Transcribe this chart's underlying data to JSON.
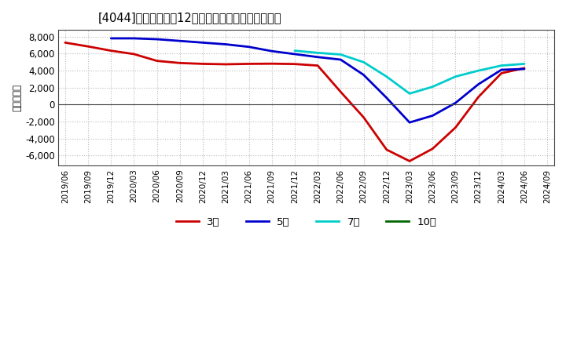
{
  "title": "[4044]　当期純利益12か月移動合計の平均値の推移",
  "ylabel": "（百万円）",
  "background_color": "#ffffff",
  "grid_color": "#bbbbbb",
  "ylim": [
    -7200,
    8800
  ],
  "yticks": [
    -6000,
    -4000,
    -2000,
    0,
    2000,
    4000,
    6000,
    8000
  ],
  "series": {
    "3年": {
      "color": "#cc0000",
      "dates": [
        "2019/06",
        "2019/09",
        "2019/12",
        "2020/03",
        "2020/06",
        "2020/09",
        "2020/12",
        "2021/03",
        "2021/06",
        "2021/09",
        "2021/12",
        "2022/03",
        "2022/06",
        "2022/09",
        "2022/12",
        "2023/03",
        "2023/06",
        "2023/09",
        "2023/12",
        "2024/03",
        "2024/06"
      ],
      "values": [
        7300,
        6850,
        6350,
        5950,
        5150,
        4900,
        4800,
        4750,
        4800,
        4820,
        4780,
        4600,
        1500,
        -1500,
        -5300,
        -6650,
        -5200,
        -2700,
        900,
        3700,
        4300
      ]
    },
    "5年": {
      "color": "#0000cc",
      "dates": [
        "2019/12",
        "2020/03",
        "2020/06",
        "2020/09",
        "2020/12",
        "2021/03",
        "2021/06",
        "2021/09",
        "2021/12",
        "2022/03",
        "2022/06",
        "2022/09",
        "2022/12",
        "2023/03",
        "2023/06",
        "2023/09",
        "2023/12",
        "2024/03",
        "2024/06"
      ],
      "values": [
        7800,
        7800,
        7700,
        7500,
        7300,
        7100,
        6800,
        6300,
        5950,
        5600,
        5300,
        3500,
        800,
        -2100,
        -1300,
        200,
        2400,
        4100,
        4200
      ]
    },
    "7年": {
      "color": "#00cccc",
      "dates": [
        "2021/12",
        "2022/03",
        "2022/06",
        "2022/09",
        "2022/12",
        "2023/03",
        "2023/06",
        "2023/09",
        "2023/12",
        "2024/03",
        "2024/06"
      ],
      "values": [
        6350,
        6100,
        5900,
        5000,
        3300,
        1300,
        2100,
        3300,
        4000,
        4600,
        4800
      ]
    },
    "10年": {
      "color": "#006600",
      "dates": [],
      "values": []
    }
  },
  "legend_labels": [
    "3年",
    "5年",
    "7年",
    "10年"
  ],
  "legend_colors": [
    "#cc0000",
    "#0000cc",
    "#00cccc",
    "#006600"
  ],
  "xtick_labels": [
    "2019/06",
    "2019/09",
    "2019/12",
    "2020/03",
    "2020/06",
    "2020/09",
    "2020/12",
    "2021/03",
    "2021/06",
    "2021/09",
    "2021/12",
    "2022/03",
    "2022/06",
    "2022/09",
    "2022/12",
    "2023/03",
    "2023/06",
    "2023/09",
    "2023/12",
    "2024/03",
    "2024/06",
    "2024/09"
  ]
}
